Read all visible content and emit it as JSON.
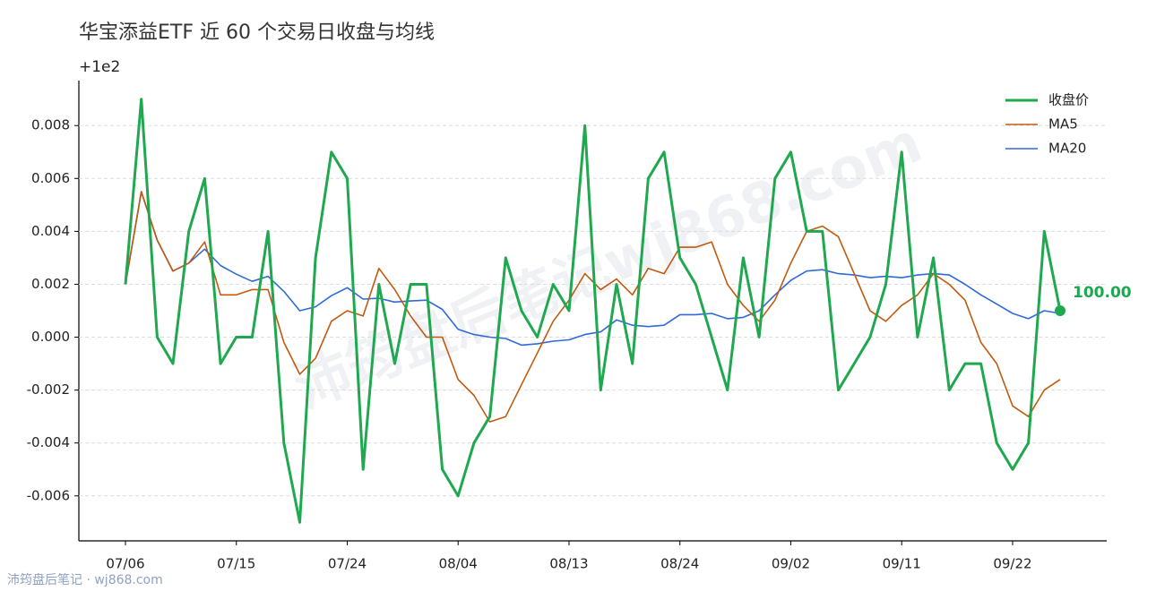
{
  "chart_data": {
    "type": "line",
    "title": "华宝添益ETF 近 60 个交易日收盘与均线",
    "offset_label": "+1e2",
    "watermark": "沛筠盘后笔记wj868.com",
    "footer": "沛筠盘后笔记 · wj868.com",
    "last_value_label": "100.00",
    "categories": [
      "07/06",
      null,
      null,
      null,
      null,
      null,
      null,
      "07/15",
      null,
      null,
      null,
      null,
      null,
      null,
      "07/24",
      null,
      null,
      null,
      null,
      null,
      null,
      "08/04",
      null,
      null,
      null,
      null,
      null,
      null,
      "08/13",
      null,
      null,
      null,
      null,
      null,
      null,
      "08/24",
      null,
      null,
      null,
      null,
      null,
      null,
      "09/02",
      null,
      null,
      null,
      null,
      null,
      null,
      "09/11",
      null,
      null,
      null,
      null,
      null,
      null,
      "09/22",
      null,
      null,
      null
    ],
    "series": [
      {
        "name": "收盘价",
        "color": "#1fa84f",
        "width": 3,
        "values": [
          0.002,
          0.009,
          0.0,
          -0.001,
          0.004,
          0.006,
          -0.001,
          0.0,
          0.0,
          0.004,
          -0.004,
          -0.007,
          0.003,
          0.007,
          0.006,
          -0.005,
          0.002,
          -0.001,
          0.002,
          0.002,
          -0.005,
          -0.006,
          -0.004,
          -0.003,
          0.003,
          0.001,
          0.0,
          0.002,
          0.001,
          0.008,
          -0.002,
          0.002,
          -0.001,
          0.006,
          0.007,
          0.003,
          0.002,
          0.0,
          -0.002,
          0.003,
          0.0,
          0.006,
          0.007,
          0.004,
          0.004,
          -0.002,
          -0.001,
          0.0,
          0.002,
          0.007,
          0.0,
          0.003,
          -0.002,
          -0.001,
          -0.001,
          -0.004,
          -0.005,
          -0.004,
          0.004,
          0.001
        ]
      },
      {
        "name": "MA5",
        "color": "#c05a0f",
        "width": 1.6,
        "values": [
          0.002,
          0.0055,
          0.00367,
          0.0025,
          0.0028,
          0.0036,
          0.0016,
          0.0016,
          0.0018,
          0.0018,
          -0.0002,
          -0.0014,
          -0.0008,
          0.0006,
          0.001,
          0.0008,
          0.0026,
          0.0018,
          0.0008,
          0.0,
          0.0,
          -0.0016,
          -0.0022,
          -0.0032,
          -0.003,
          -0.0018,
          -0.0006,
          0.0006,
          0.0014,
          0.0024,
          0.0018,
          0.0022,
          0.0016,
          0.0026,
          0.0024,
          0.0034,
          0.0034,
          0.0036,
          0.002,
          0.0012,
          0.0006,
          0.0014,
          0.0028,
          0.004,
          0.0042,
          0.0038,
          0.0024,
          0.001,
          0.0006,
          0.0012,
          0.0016,
          0.0024,
          0.002,
          0.0014,
          -0.0002,
          -0.001,
          -0.0026,
          -0.003,
          -0.002,
          -0.0016
        ]
      },
      {
        "name": "MA20",
        "color": "#2f6ad8",
        "width": 1.6,
        "values": [
          0.002,
          0.0055,
          0.00367,
          0.0025,
          0.0028,
          0.00333,
          0.00271,
          0.00238,
          0.00211,
          0.0023,
          0.00173,
          0.001,
          0.00115,
          0.00157,
          0.00187,
          0.00144,
          0.00147,
          0.00133,
          0.00137,
          0.0014,
          0.00105,
          0.0003,
          0.0001,
          0.0,
          -5e-05,
          -0.0003,
          -0.00025,
          -0.00015,
          -0.0001,
          0.0001,
          0.0002,
          0.00065,
          0.00045,
          0.0004,
          0.00045,
          0.00085,
          0.00085,
          0.0009,
          0.0007,
          0.00075,
          0.001,
          0.0016,
          0.00215,
          0.0025,
          0.00255,
          0.0024,
          0.00235,
          0.00225,
          0.0023,
          0.00225,
          0.00235,
          0.0024,
          0.00235,
          0.002,
          0.0016,
          0.00125,
          0.0009,
          0.0007,
          0.001,
          0.0009
        ]
      }
    ],
    "ylim": [
      -0.0077,
      0.0097
    ],
    "yticks": [
      -0.006,
      -0.004,
      -0.002,
      {
        "value": 0,
        "label": "0.000"
      },
      0.002,
      0.004,
      0.006,
      0.008
    ],
    "grid": true,
    "legend": "upper right"
  }
}
